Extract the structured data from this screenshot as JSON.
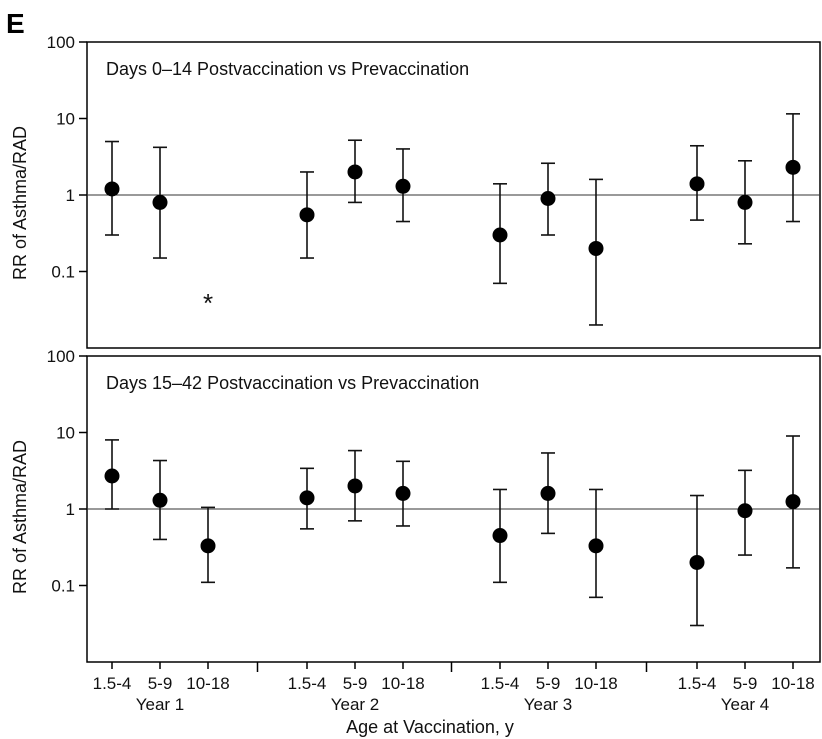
{
  "panel_label": "E",
  "chart_data": [
    {
      "type": "scatter",
      "title": "Days 0–14 Postvaccination vs Prevaccination",
      "ylabel": "RR of Asthma/RAD",
      "ylog": true,
      "ylim": [
        0.01,
        100
      ],
      "yticks": [
        "100",
        "10",
        "1",
        "0.1"
      ],
      "reference_line": 1,
      "series": [
        {
          "points": [
            {
              "group": "Year 1",
              "age": "1.5-4",
              "rr": 1.2,
              "lo": 0.3,
              "hi": 5
            },
            {
              "group": "Year 1",
              "age": "5-9",
              "rr": 0.8,
              "lo": 0.15,
              "hi": 4.2
            },
            {
              "group": "Year 1",
              "age": "10-18",
              "rr": null,
              "note": "*"
            },
            {
              "group": "Year 2",
              "age": "1.5-4",
              "rr": 0.55,
              "lo": 0.15,
              "hi": 2
            },
            {
              "group": "Year 2",
              "age": "5-9",
              "rr": 2,
              "lo": 0.8,
              "hi": 5.2
            },
            {
              "group": "Year 2",
              "age": "10-18",
              "rr": 1.3,
              "lo": 0.45,
              "hi": 4
            },
            {
              "group": "Year 3",
              "age": "1.5-4",
              "rr": 0.3,
              "lo": 0.07,
              "hi": 1.4
            },
            {
              "group": "Year 3",
              "age": "5-9",
              "rr": 0.9,
              "lo": 0.3,
              "hi": 2.6
            },
            {
              "group": "Year 3",
              "age": "10-18",
              "rr": 0.2,
              "lo": 0.02,
              "hi": 1.6
            },
            {
              "group": "Year 4",
              "age": "1.5-4",
              "rr": 1.4,
              "lo": 0.47,
              "hi": 4.4
            },
            {
              "group": "Year 4",
              "age": "5-9",
              "rr": 0.8,
              "lo": 0.23,
              "hi": 2.8
            },
            {
              "group": "Year 4",
              "age": "10-18",
              "rr": 2.3,
              "lo": 0.45,
              "hi": 11.5
            }
          ]
        }
      ]
    },
    {
      "type": "scatter",
      "title": "Days 15–42 Postvaccination vs Prevaccination",
      "ylabel": "RR of Asthma/RAD",
      "ylog": true,
      "ylim": [
        0.01,
        100
      ],
      "yticks": [
        "100",
        "10",
        "1",
        "0.1"
      ],
      "reference_line": 1,
      "xlabel": "Age at Vaccination, y",
      "groups": [
        "Year 1",
        "Year 2",
        "Year 3",
        "Year 4"
      ],
      "ages": [
        "1.5-4",
        "5-9",
        "10-18"
      ],
      "series": [
        {
          "points": [
            {
              "group": "Year 1",
              "age": "1.5-4",
              "rr": 2.7,
              "lo": 1,
              "hi": 8
            },
            {
              "group": "Year 1",
              "age": "5-9",
              "rr": 1.3,
              "lo": 0.4,
              "hi": 4.3
            },
            {
              "group": "Year 1",
              "age": "10-18",
              "rr": 0.33,
              "lo": 0.11,
              "hi": 1.05
            },
            {
              "group": "Year 2",
              "age": "1.5-4",
              "rr": 1.4,
              "lo": 0.55,
              "hi": 3.4
            },
            {
              "group": "Year 2",
              "age": "5-9",
              "rr": 2,
              "lo": 0.7,
              "hi": 5.8
            },
            {
              "group": "Year 2",
              "age": "10-18",
              "rr": 1.6,
              "lo": 0.6,
              "hi": 4.2
            },
            {
              "group": "Year 3",
              "age": "1.5-4",
              "rr": 0.45,
              "lo": 0.11,
              "hi": 1.8
            },
            {
              "group": "Year 3",
              "age": "5-9",
              "rr": 1.6,
              "lo": 0.48,
              "hi": 5.4
            },
            {
              "group": "Year 3",
              "age": "10-18",
              "rr": 0.33,
              "lo": 0.07,
              "hi": 1.8
            },
            {
              "group": "Year 4",
              "age": "1.5-4",
              "rr": 0.2,
              "lo": 0.03,
              "hi": 1.5
            },
            {
              "group": "Year 4",
              "age": "5-9",
              "rr": 0.95,
              "lo": 0.25,
              "hi": 3.2
            },
            {
              "group": "Year 4",
              "age": "10-18",
              "rr": 1.25,
              "lo": 0.17,
              "hi": 9
            }
          ]
        }
      ]
    }
  ]
}
